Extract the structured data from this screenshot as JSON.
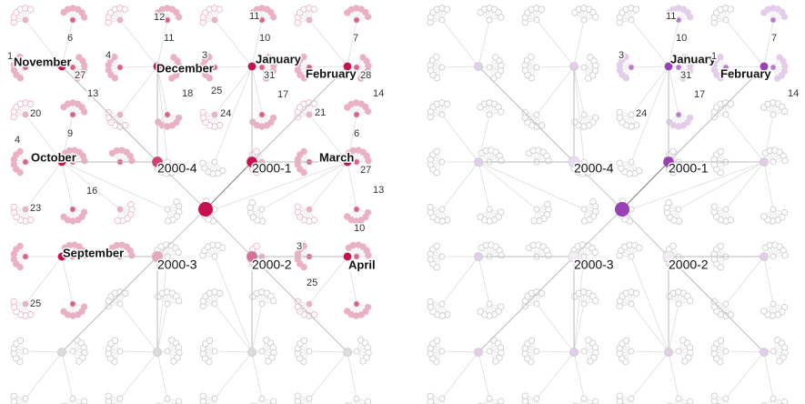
{
  "panels": [
    {
      "quarters": [
        "2000-4",
        "2000-1",
        "2000-3",
        "2000-2"
      ],
      "months": [
        "November",
        "December",
        "January",
        "February",
        "October",
        "March",
        "September",
        "April"
      ],
      "days": [
        "1",
        "6",
        "12",
        "11",
        "3",
        "11",
        "10",
        "7",
        "4",
        "27",
        "13",
        "18",
        "25",
        "24",
        "31",
        "17",
        "28",
        "14",
        "20",
        "21",
        "9",
        "6",
        "4",
        "27",
        "13",
        "16",
        "23",
        "10",
        "3",
        "25",
        "25"
      ]
    },
    {
      "quarters": [
        "2000-4",
        "2000-1",
        "2000-3",
        "2000-2"
      ],
      "months": [
        "January",
        "February"
      ],
      "days": [
        "11",
        "10",
        "7",
        "3",
        "1",
        "31",
        "17",
        "14",
        "24"
      ]
    }
  ]
}
